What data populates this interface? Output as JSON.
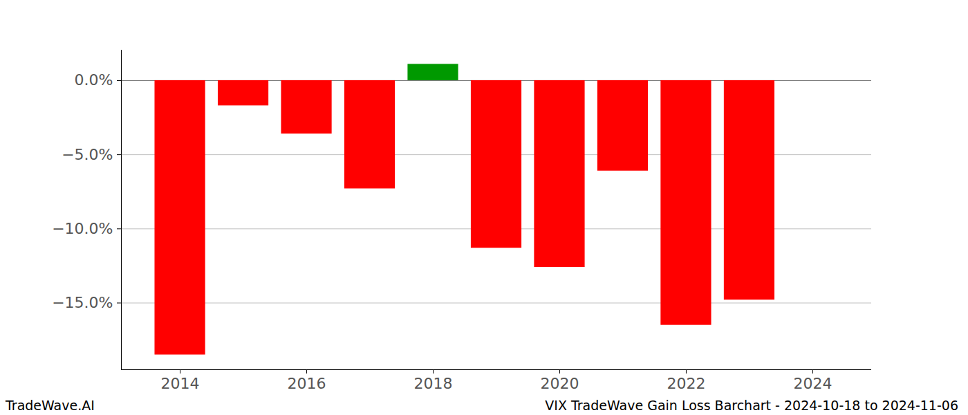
{
  "chart_data": {
    "type": "bar",
    "title": "VIX TradeWave Gain Loss Barchart - 2024-10-18 to 2024-11-06",
    "subtitle": "TradeWave.AI",
    "x": [
      2014,
      2015,
      2016,
      2017,
      2018,
      2019,
      2020,
      2021,
      2022,
      2023
    ],
    "values": [
      -18.5,
      -1.7,
      -3.6,
      -7.3,
      1.1,
      -11.3,
      -12.6,
      -6.1,
      -16.5,
      -14.8
    ],
    "colors": [
      "#ff0000",
      "#ff0000",
      "#ff0000",
      "#ff0000",
      "#009900",
      "#ff0000",
      "#ff0000",
      "#ff0000",
      "#ff0000",
      "#ff0000"
    ],
    "xlim": [
      2013.07,
      2024.93
    ],
    "xticks": [
      2014,
      2016,
      2018,
      2020,
      2022,
      2024
    ],
    "ylim": [
      -19.5,
      2.05
    ],
    "yticks": [
      {
        "value": 0,
        "label": "0.0%"
      },
      {
        "value": -5,
        "label": "−5.0%"
      },
      {
        "value": -10,
        "label": "−10.0%"
      },
      {
        "value": -15,
        "label": "−15.0%"
      }
    ],
    "grid": true
  }
}
